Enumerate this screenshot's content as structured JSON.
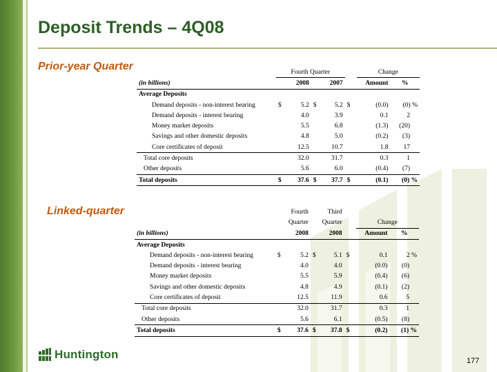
{
  "title": "Deposit Trends – 4Q08",
  "section1": {
    "label": "Prior-year Quarter",
    "header_group": "Fourth Quarter",
    "header_change": "Change",
    "col_units": "(in billions)",
    "col_a": "2008",
    "col_b": "2007",
    "col_amount": "Amount",
    "col_pct": "%",
    "group_label": "Average Deposits",
    "rows": [
      {
        "label": "Demand deposits - non-interest bearing",
        "d1": "$",
        "a": "5.2",
        "d2": "$",
        "b": "5.2",
        "d3": "$",
        "amt": "(0.0)",
        "pct": "(0) %"
      },
      {
        "label": "Demand deposits - interest bearing",
        "d1": "",
        "a": "4.0",
        "d2": "",
        "b": "3.9",
        "d3": "",
        "amt": "0.1",
        "pct": "2"
      },
      {
        "label": "Money market deposits",
        "d1": "",
        "a": "5.5",
        "d2": "",
        "b": "6.8",
        "d3": "",
        "amt": "(1.3)",
        "pct": "(20)"
      },
      {
        "label": "Savings and other domestic deposits",
        "d1": "",
        "a": "4.8",
        "d2": "",
        "b": "5.0",
        "d3": "",
        "amt": "(0.2)",
        "pct": "(3)"
      },
      {
        "label": "Core certificates of deposit",
        "d1": "",
        "a": "12.5",
        "d2": "",
        "b": "10.7",
        "d3": "",
        "amt": "1.8",
        "pct": "17"
      },
      {
        "label": "Total core deposits",
        "d1": "",
        "a": "32.0",
        "d2": "",
        "b": "31.7",
        "d3": "",
        "amt": "0.3",
        "pct": "1"
      },
      {
        "label": "Other deposits",
        "d1": "",
        "a": "5.6",
        "d2": "",
        "b": "6.0",
        "d3": "",
        "amt": "(0.4)",
        "pct": "(7)"
      },
      {
        "label": "Total deposits",
        "d1": "$",
        "a": "37.6",
        "d2": "$",
        "b": "37.7",
        "d3": "$",
        "amt": "(0.1)",
        "pct": "(0) %"
      }
    ]
  },
  "section2": {
    "label": "Linked-quarter",
    "col_a_top": "Fourth",
    "col_a_mid": "Quarter",
    "col_b_top": "Third",
    "col_b_mid": "Quarter",
    "header_change": "Change",
    "col_units": "(in billions)",
    "col_a": "2008",
    "col_b": "2008",
    "col_amount": "Amount",
    "col_pct": "%",
    "group_label": "Average Deposits",
    "rows": [
      {
        "label": "Demand deposits - non-interest bearing",
        "d1": "$",
        "a": "5.2",
        "d2": "$",
        "b": "5.1",
        "d3": "$",
        "amt": "0.1",
        "pct": "2 %"
      },
      {
        "label": "Demand deposits - interest bearing",
        "d1": "",
        "a": "4.0",
        "d2": "",
        "b": "4.0",
        "d3": "",
        "amt": "(0.0)",
        "pct": "(0)"
      },
      {
        "label": "Money market deposits",
        "d1": "",
        "a": "5.5",
        "d2": "",
        "b": "5.9",
        "d3": "",
        "amt": "(0.4)",
        "pct": "(6)"
      },
      {
        "label": "Savings and other domestic deposits",
        "d1": "",
        "a": "4.8",
        "d2": "",
        "b": "4.9",
        "d3": "",
        "amt": "(0.1)",
        "pct": "(2)"
      },
      {
        "label": "Core certificates of deposit",
        "d1": "",
        "a": "12.5",
        "d2": "",
        "b": "11.9",
        "d3": "",
        "amt": "0.6",
        "pct": "5"
      },
      {
        "label": "Total core deposits",
        "d1": "",
        "a": "32.0",
        "d2": "",
        "b": "31.7",
        "d3": "",
        "amt": "0.3",
        "pct": "1"
      },
      {
        "label": "Other deposits",
        "d1": "",
        "a": "5.6",
        "d2": "",
        "b": "6.1",
        "d3": "",
        "amt": "(0.5)",
        "pct": "(8)"
      },
      {
        "label": "Total deposits",
        "d1": "$",
        "a": "37.6",
        "d2": "$",
        "b": "37.8",
        "d3": "$",
        "amt": "(0.2)",
        "pct": "(1) %"
      }
    ]
  },
  "logo_text": "Huntington",
  "page_number": "177",
  "colors": {
    "title": "#2e5e26",
    "section_label": "#c05a10",
    "sidebar": "#5b8a33",
    "logo": "#2e6b28"
  }
}
